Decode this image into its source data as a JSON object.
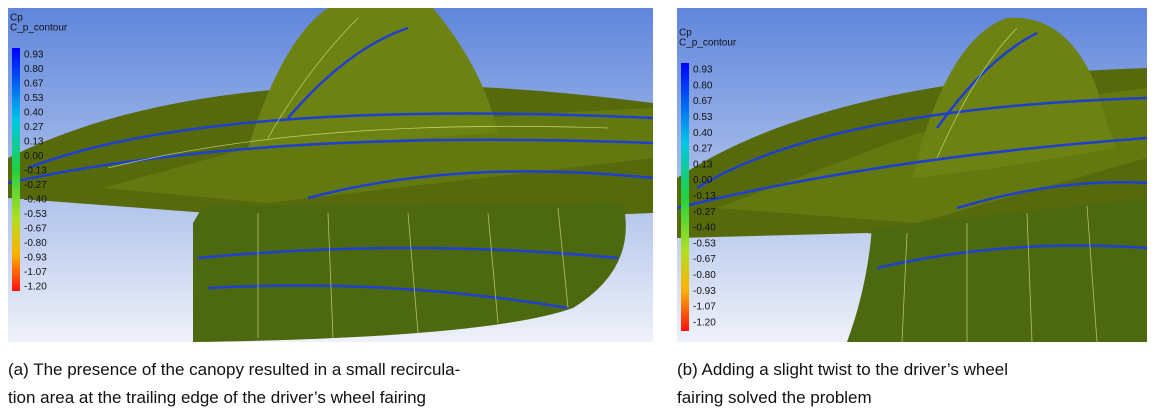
{
  "figures": [
    {
      "legend": {
        "title": "Cp",
        "subtitle": "C_p_contour",
        "labels": [
          "0.93",
          "0.80",
          "0.67",
          "0.53",
          "0.40",
          "0.27",
          "0.13",
          "0.00",
          "-0.13",
          "-0.27",
          "-0.40",
          "-0.53",
          "-0.67",
          "-0.80",
          "-0.93",
          "-1.07",
          "-1.20"
        ]
      },
      "caption_lines": [
        "(a) The presence of the canopy resulted in a small recircula-",
        "tion area at the trailing edge of the driver’s wheel fairing"
      ]
    },
    {
      "legend": {
        "title": "Cp",
        "subtitle": "C_p_contour",
        "labels": [
          "0.93",
          "0.80",
          "0.67",
          "0.53",
          "0.40",
          "0.27",
          "0.13",
          "0.00",
          "-0.13",
          "-0.27",
          "-0.40",
          "-0.53",
          "-0.67",
          "-0.80",
          "-0.93",
          "-1.07",
          "-1.20"
        ]
      },
      "caption_lines": [
        "(b) Adding a slight twist to the driver’s wheel",
        "fairing solved the problem"
      ]
    }
  ]
}
